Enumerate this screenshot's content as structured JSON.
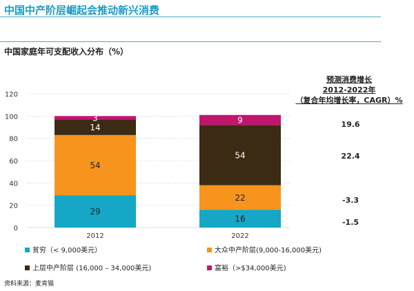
{
  "title": "中国中产阶层崛起会推动新兴消费",
  "subtitle": "中国家庭年可支配收入分布（%）",
  "growth": {
    "header_line1": "预测消费增长",
    "header_line2": "2012-2022年",
    "header_line3": "（复合年均增长率，CAGR）%",
    "values": [
      "19.6",
      "22.4",
      "-3.3",
      "-1.5"
    ]
  },
  "source": "资料来源：麦肯锡",
  "colors": {
    "title": "#1b9bc3",
    "poor": "#15a7c5",
    "mass_middle": "#f7941d",
    "upper_middle": "#3b2a14",
    "affluent": "#c0166e"
  },
  "chart_data": {
    "type": "bar",
    "stacked": true,
    "categories": [
      "2012",
      "2022"
    ],
    "series": [
      {
        "name": "贫穷（< 9,000美元）",
        "values": [
          29,
          16
        ],
        "color": "#15a7c5"
      },
      {
        "name": "大众中产阶层(9,000-16,000美元)",
        "values": [
          54,
          22
        ],
        "color": "#f7941d"
      },
      {
        "name": "上层中产阶层 (16,000 – 34,000美元)",
        "values": [
          14,
          54
        ],
        "color": "#3b2a14"
      },
      {
        "name": "富裕（>$34,000美元)",
        "values": [
          3,
          9
        ],
        "color": "#c0166e"
      }
    ],
    "ylim": [
      0,
      120
    ],
    "yticks": [
      0,
      20,
      40,
      60,
      80,
      100,
      120
    ],
    "grid": true,
    "legend": "bottom"
  }
}
